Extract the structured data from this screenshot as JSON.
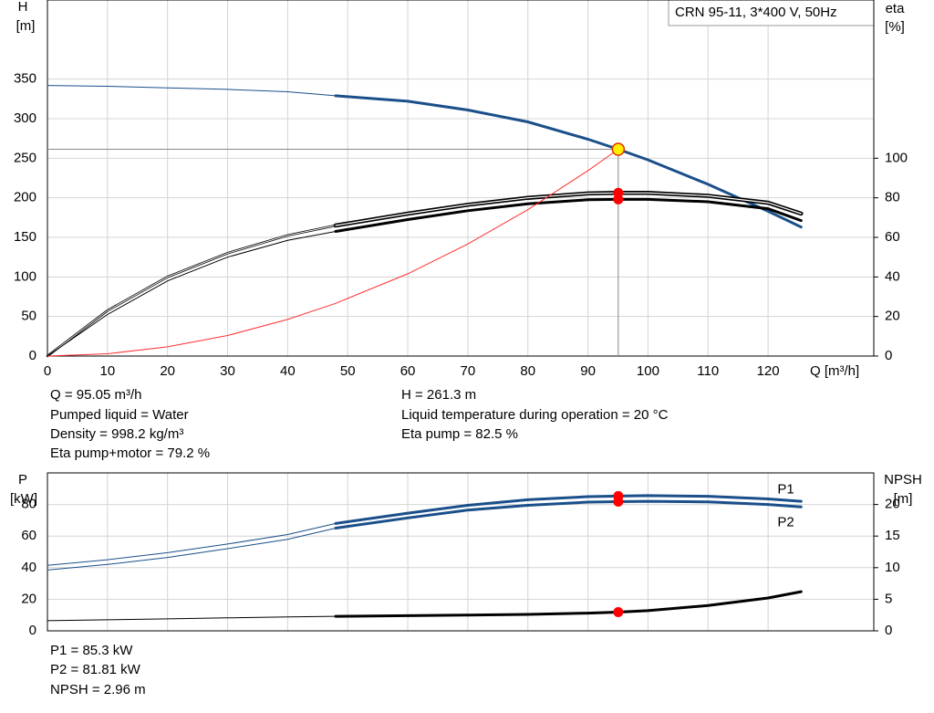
{
  "header": {
    "title": "CRN 95-11, 3*400 V, 50Hz"
  },
  "chart_data": [
    {
      "type": "line",
      "thick_from": 48,
      "operating_q": 95.05,
      "guides": true,
      "grid": true,
      "xtick_labels": true,
      "ylabel": [
        "H",
        "[m]"
      ],
      "y2label": [
        "eta",
        "[%]"
      ],
      "xlabel": "Q [m³/h]",
      "xlim": [
        0,
        137.6
      ],
      "xticks": [
        0,
        10,
        20,
        30,
        40,
        50,
        60,
        70,
        80,
        90,
        100,
        110,
        120
      ],
      "ylim": [
        0,
        450
      ],
      "yticks": [
        0,
        50,
        100,
        150,
        200,
        250,
        300,
        350
      ],
      "y2lim": [
        0,
        180
      ],
      "y2ticks": [
        0,
        20,
        40,
        60,
        80,
        100
      ],
      "series": [
        {
          "color": "#1a4f8a",
          "marker": "#ffee00",
          "x": [
            0,
            10,
            20,
            30,
            40,
            48,
            60,
            70,
            80,
            90,
            95.05,
            100,
            110,
            120,
            125.5
          ],
          "values": [
            342,
            341,
            339,
            337,
            334,
            329,
            322,
            311,
            296,
            274,
            261.3,
            248,
            217,
            183,
            163
          ]
        },
        {
          "color": "#000000",
          "style": "outline",
          "marker": "#ff0000",
          "axis": "y2",
          "x": [
            0,
            10,
            20,
            30,
            40,
            48,
            60,
            70,
            80,
            90,
            95.05,
            100,
            110,
            120,
            125.5
          ],
          "values": [
            0,
            23,
            40,
            52,
            61,
            66,
            72,
            76.5,
            80,
            82.2,
            82.5,
            82.5,
            81,
            77.5,
            72
          ]
        },
        {
          "color": "#000000",
          "marker": "#ff0000",
          "axis": "y2",
          "x": [
            0,
            10,
            20,
            30,
            40,
            48,
            60,
            70,
            80,
            90,
            95.05,
            100,
            110,
            120,
            125.5
          ],
          "values": [
            0,
            21,
            38,
            50,
            58.5,
            63,
            69,
            73.5,
            77,
            79,
            79.2,
            79.2,
            78,
            74.5,
            68.5
          ]
        },
        {
          "color": "#ff3030",
          "style": "thin",
          "x": [
            0,
            10,
            20,
            30,
            40,
            48,
            60,
            70,
            80,
            90,
            95.05
          ],
          "values": [
            0,
            2.9,
            11.6,
            26,
            46.3,
            66.6,
            104,
            141.7,
            185,
            234.3,
            261.3
          ]
        }
      ]
    },
    {
      "type": "line",
      "thick_from": 48,
      "operating_q": 95.05,
      "guides": false,
      "grid": true,
      "xtick_labels": false,
      "ylabel": [
        "P",
        "[kW]"
      ],
      "y2label": [
        "NPSH",
        "[m]"
      ],
      "xlim": [
        0,
        137.6
      ],
      "xticks": [
        0,
        10,
        20,
        30,
        40,
        50,
        60,
        70,
        80,
        90,
        100,
        110,
        120
      ],
      "ylim": [
        0,
        100
      ],
      "yticks": [
        0,
        20,
        40,
        60,
        80
      ],
      "y2lim": [
        0,
        25
      ],
      "y2ticks": [
        0,
        5,
        10,
        15,
        20
      ],
      "series": [
        {
          "name": "P1",
          "color": "#1a4f8a",
          "marker": "#ff0000",
          "x": [
            0,
            10,
            20,
            30,
            40,
            48,
            60,
            70,
            80,
            90,
            95.05,
            100,
            110,
            120,
            125.5
          ],
          "values": [
            41.5,
            45,
            49.5,
            55,
            61,
            68,
            74.5,
            79.5,
            83,
            85,
            85.3,
            85.6,
            85.2,
            83.5,
            82
          ]
        },
        {
          "name": "P2",
          "color": "#1a4f8a",
          "marker": "#ff0000",
          "x": [
            0,
            10,
            20,
            30,
            40,
            48,
            60,
            70,
            80,
            90,
            95.05,
            100,
            110,
            120,
            125.5
          ],
          "values": [
            38.5,
            42,
            46.5,
            52,
            58,
            65,
            71.5,
            76.5,
            79.5,
            81.5,
            81.81,
            82,
            81.6,
            80,
            78.5
          ]
        },
        {
          "color": "#000000",
          "marker": "#ff0000",
          "axis": "y2",
          "x": [
            0,
            10,
            20,
            30,
            40,
            48,
            60,
            70,
            80,
            90,
            95.05,
            100,
            110,
            120,
            125.5
          ],
          "values": [
            1.6,
            1.75,
            1.9,
            2.05,
            2.2,
            2.3,
            2.4,
            2.5,
            2.6,
            2.8,
            2.96,
            3.2,
            4,
            5.2,
            6.2
          ]
        }
      ]
    }
  ],
  "info": {
    "top": [
      "Q = 95.05 m³/h",
      "Pumped liquid = Water",
      "Density = 998.2 kg/m³",
      "Eta pump+motor = 79.2 %",
      "H = 261.3 m",
      "Liquid temperature during operation = 20 °C",
      "Eta pump = 82.5 %"
    ],
    "bottom": [
      "P1 = 85.3 kW",
      "P2 = 81.81 kW",
      "NPSH = 2.96 m"
    ]
  }
}
